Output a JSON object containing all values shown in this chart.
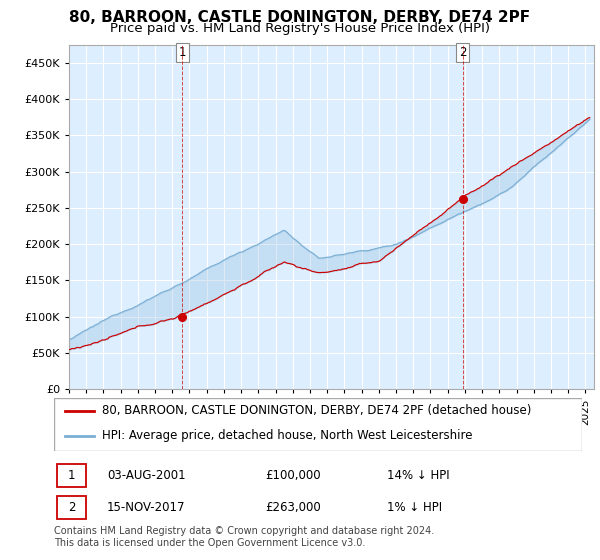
{
  "title": "80, BARROON, CASTLE DONINGTON, DERBY, DE74 2PF",
  "subtitle": "Price paid vs. HM Land Registry's House Price Index (HPI)",
  "ytick_values": [
    0,
    50000,
    100000,
    150000,
    200000,
    250000,
    300000,
    350000,
    400000,
    450000
  ],
  "ylim": [
    0,
    475000
  ],
  "xlim_start": 1995.0,
  "xlim_end": 2025.5,
  "transaction1": {
    "date_num": 2001.58,
    "price": 100000,
    "label": "1"
  },
  "transaction2": {
    "date_num": 2017.87,
    "price": 263000,
    "label": "2"
  },
  "hpi_color": "#7bafd4",
  "price_color": "#CC0000",
  "grid_color": "#cccccc",
  "plot_bg_color": "#ddeeff",
  "background_color": "#ffffff",
  "legend_label_red": "80, BARROON, CASTLE DONINGTON, DERBY, DE74 2PF (detached house)",
  "legend_label_blue": "HPI: Average price, detached house, North West Leicestershire",
  "table_row1": [
    "1",
    "03-AUG-2001",
    "£100,000",
    "14% ↓ HPI"
  ],
  "table_row2": [
    "2",
    "15-NOV-2017",
    "£263,000",
    "1% ↓ HPI"
  ],
  "footer": "Contains HM Land Registry data © Crown copyright and database right 2024.\nThis data is licensed under the Open Government Licence v3.0.",
  "title_fontsize": 11,
  "subtitle_fontsize": 9.5,
  "tick_fontsize": 8,
  "legend_fontsize": 8.5,
  "footer_fontsize": 7
}
